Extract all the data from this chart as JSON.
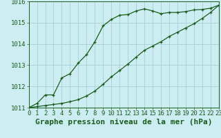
{
  "title": "Graphe pression niveau de la mer (hPa)",
  "background_color": "#cceef2",
  "grid_color": "#aad4dc",
  "line_color": "#1a5c1a",
  "x_min": 0,
  "x_max": 23,
  "y_min": 1011,
  "y_max": 1016,
  "x_ticks": [
    0,
    1,
    2,
    3,
    4,
    5,
    6,
    7,
    8,
    9,
    10,
    11,
    12,
    13,
    14,
    15,
    16,
    17,
    18,
    19,
    20,
    21,
    22,
    23
  ],
  "y_ticks": [
    1011,
    1012,
    1013,
    1014,
    1015,
    1016
  ],
  "line1_x": [
    0,
    1,
    2,
    3,
    4,
    5,
    6,
    7,
    8,
    9,
    10,
    11,
    12,
    13,
    14,
    15,
    16,
    17,
    18,
    19,
    20,
    21,
    22,
    23
  ],
  "line1_y": [
    1011.0,
    1011.2,
    1011.6,
    1011.6,
    1012.4,
    1012.6,
    1013.1,
    1013.5,
    1014.1,
    1014.85,
    1015.15,
    1015.35,
    1015.38,
    1015.55,
    1015.65,
    1015.55,
    1015.42,
    1015.48,
    1015.48,
    1015.52,
    1015.6,
    1015.62,
    1015.68,
    1015.82
  ],
  "line2_x": [
    0,
    1,
    2,
    3,
    4,
    5,
    6,
    7,
    8,
    9,
    10,
    11,
    12,
    13,
    14,
    15,
    16,
    17,
    18,
    19,
    20,
    21,
    22,
    23
  ],
  "line2_y": [
    1011.0,
    1011.05,
    1011.1,
    1011.15,
    1011.2,
    1011.28,
    1011.38,
    1011.55,
    1011.78,
    1012.1,
    1012.45,
    1012.75,
    1013.05,
    1013.38,
    1013.7,
    1013.9,
    1014.1,
    1014.35,
    1014.55,
    1014.75,
    1014.95,
    1015.2,
    1015.48,
    1015.82
  ],
  "xlabel_fontsize": 8,
  "tick_fontsize": 6.5
}
